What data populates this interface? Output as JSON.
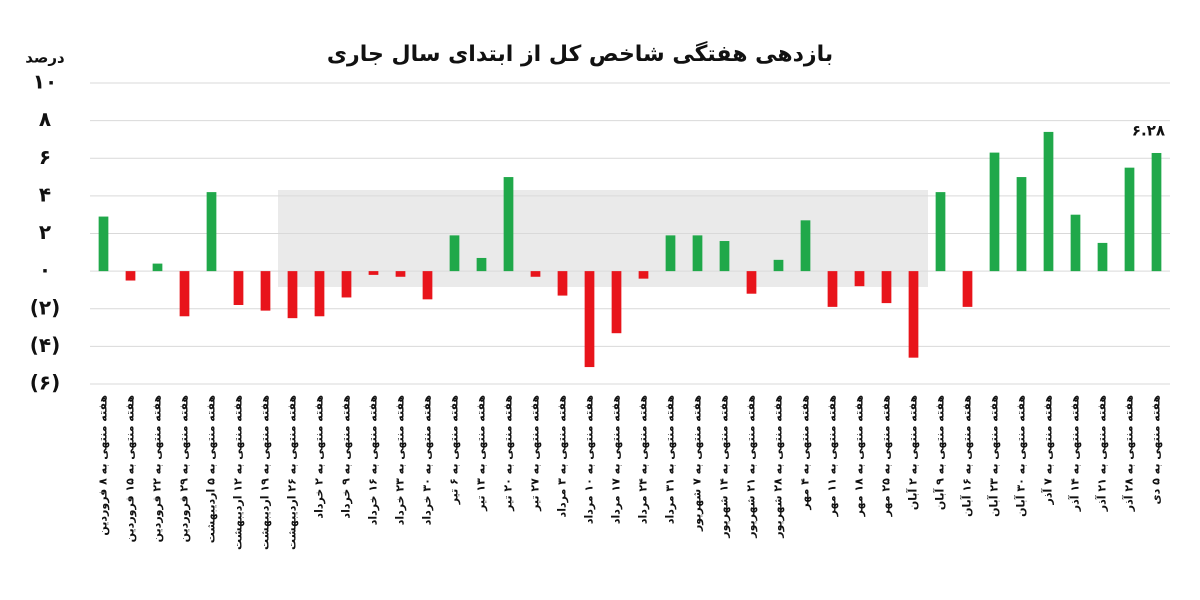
{
  "chart_data": {
    "type": "bar",
    "title": "بازدهی هفتگی شاخص کل از ابتدای سال جاری",
    "y_label": "درصد",
    "categories": [
      "هفته منتهی به ۸ فروردین",
      "هفته منتهی به ۱۵ فروردین",
      "هفته منتهی به ۲۲ فروردین",
      "هفته منتهی به ۲۹ فروردین",
      "هفته منتهی به ۵ اردیبهشت",
      "هفته منتهی به ۱۲ اردیبهشت",
      "هفته منتهی به ۱۹ اردیبهشت",
      "هفته منتهی به ۲۶ اردیبهشت",
      "هفته منتهی به ۲ خرداد",
      "هفته منتهی به ۹ خرداد",
      "هفته منتهی به ۱۶ خرداد",
      "هفته منتهی به ۲۳ خرداد",
      "هفته منتهی به ۳۰ خرداد",
      "هفته منتهی به ۶ تیر",
      "هفته منتهی به ۱۳ تیر",
      "هفته منتهی به ۲۰ تیر",
      "هفته منتهی به ۲۷ تیر",
      "هفته منتهی به ۳ مرداد",
      "هفته منتهی به ۱۰ مرداد",
      "هفته منتهی به ۱۷ مرداد",
      "هفته منتهی به ۲۴ مرداد",
      "هفته منتهی به ۳۱ مرداد",
      "هفته منتهی به ۷ شهریور",
      "هفته منتهی به ۱۴ شهریور",
      "هفته منتهی به ۲۱ شهریور",
      "هفته منتهی به ۲۸ شهریور",
      "هفته منتهی به ۴ مهر",
      "هفته منتهی به ۱۱ مهر",
      "هفته منتهی به ۱۸ مهر",
      "هفته منتهی به ۲۵ مهر",
      "هفته منتهی به ۲ آبان",
      "هفته منتهی به ۹ آبان",
      "هفته منتهی به ۱۶ آبان",
      "هفته منتهی به ۲۳ آبان",
      "هفته منتهی به ۳۰ آبان",
      "هفته منتهی به ۷ آذر",
      "هفته منتهی به ۱۴ آذر",
      "هفته منتهی به ۲۱ آذر",
      "هفته منتهی به ۲۸ آذر",
      "هفته منتهی به ۵ دی"
    ],
    "values": [
      2.9,
      -0.5,
      0.4,
      -2.4,
      4.2,
      -1.8,
      -2.1,
      -2.5,
      -2.4,
      -1.4,
      -0.2,
      -0.3,
      -1.5,
      1.9,
      0.7,
      5.0,
      -0.3,
      -1.3,
      -5.1,
      -3.3,
      -0.4,
      1.9,
      1.9,
      1.6,
      -1.2,
      0.6,
      2.7,
      -1.9,
      -0.8,
      -1.7,
      -4.6,
      4.2,
      -1.9,
      6.3,
      5.0,
      7.4,
      3.0,
      1.5,
      5.5,
      6.28
    ],
    "value_labels": [
      null,
      null,
      null,
      null,
      null,
      null,
      null,
      null,
      null,
      null,
      null,
      null,
      null,
      null,
      null,
      null,
      null,
      null,
      null,
      null,
      null,
      null,
      null,
      null,
      null,
      null,
      null,
      null,
      null,
      null,
      null,
      null,
      null,
      null,
      null,
      null,
      null,
      null,
      null,
      "۶.۲۸"
    ],
    "color": "#20a84a",
    "negative_color": "#e8141b",
    "ylim": [
      -6,
      10
    ],
    "yticks": [
      {
        "value": -6,
        "label": "(۶)"
      },
      {
        "value": -4,
        "label": "(۴)"
      },
      {
        "value": -2,
        "label": "(۲)"
      },
      {
        "value": 0,
        "label": "۰"
      },
      {
        "value": 2,
        "label": "۲"
      },
      {
        "value": 4,
        "label": "۴"
      },
      {
        "value": 6,
        "label": "۶"
      },
      {
        "value": 8,
        "label": "۸"
      },
      {
        "value": 10,
        "label": "۱۰"
      }
    ],
    "grid": true
  }
}
